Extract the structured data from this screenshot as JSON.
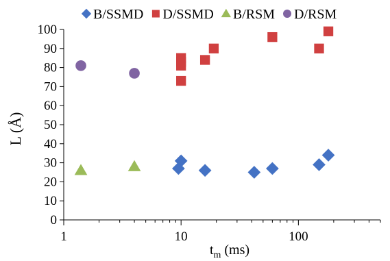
{
  "chart_data": {
    "type": "scatter",
    "title": "",
    "xlabel": "t",
    "xlabel_sub": "m",
    "xlabel_unit": " (ms)",
    "ylabel": "L (Å)",
    "x_scale": "log",
    "xlim": [
      1,
      500
    ],
    "ylim": [
      0,
      100
    ],
    "x_ticks": [
      1,
      10,
      100
    ],
    "x_tick_labels": [
      "1",
      "10",
      "100"
    ],
    "y_ticks": [
      0,
      10,
      20,
      30,
      40,
      50,
      60,
      70,
      80,
      90,
      100
    ],
    "y_tick_labels": [
      "0",
      "10",
      "20",
      "30",
      "40",
      "50",
      "60",
      "70",
      "80",
      "90",
      "100"
    ],
    "grid": false,
    "legend_position": "top",
    "series": [
      {
        "name": "B/SSMD",
        "marker": "diamond",
        "color": "#4472C4",
        "x": [
          9.5,
          10,
          16,
          42,
          60,
          150,
          180
        ],
        "y": [
          27,
          31,
          26,
          25,
          27,
          29,
          34
        ]
      },
      {
        "name": "D/SSMD",
        "marker": "square",
        "color": "#D04040",
        "x": [
          10,
          10,
          10,
          10,
          16,
          19,
          60,
          150,
          180
        ],
        "y": [
          73,
          81,
          83,
          85,
          84,
          90,
          96,
          90,
          99
        ]
      },
      {
        "name": "B/RSM",
        "marker": "triangle",
        "color": "#9BBB59",
        "x": [
          1.4,
          4
        ],
        "y": [
          26,
          28
        ]
      },
      {
        "name": "D/RSM",
        "marker": "circle",
        "color": "#8064A2",
        "x": [
          1.4,
          4
        ],
        "y": [
          81,
          77
        ]
      }
    ]
  }
}
